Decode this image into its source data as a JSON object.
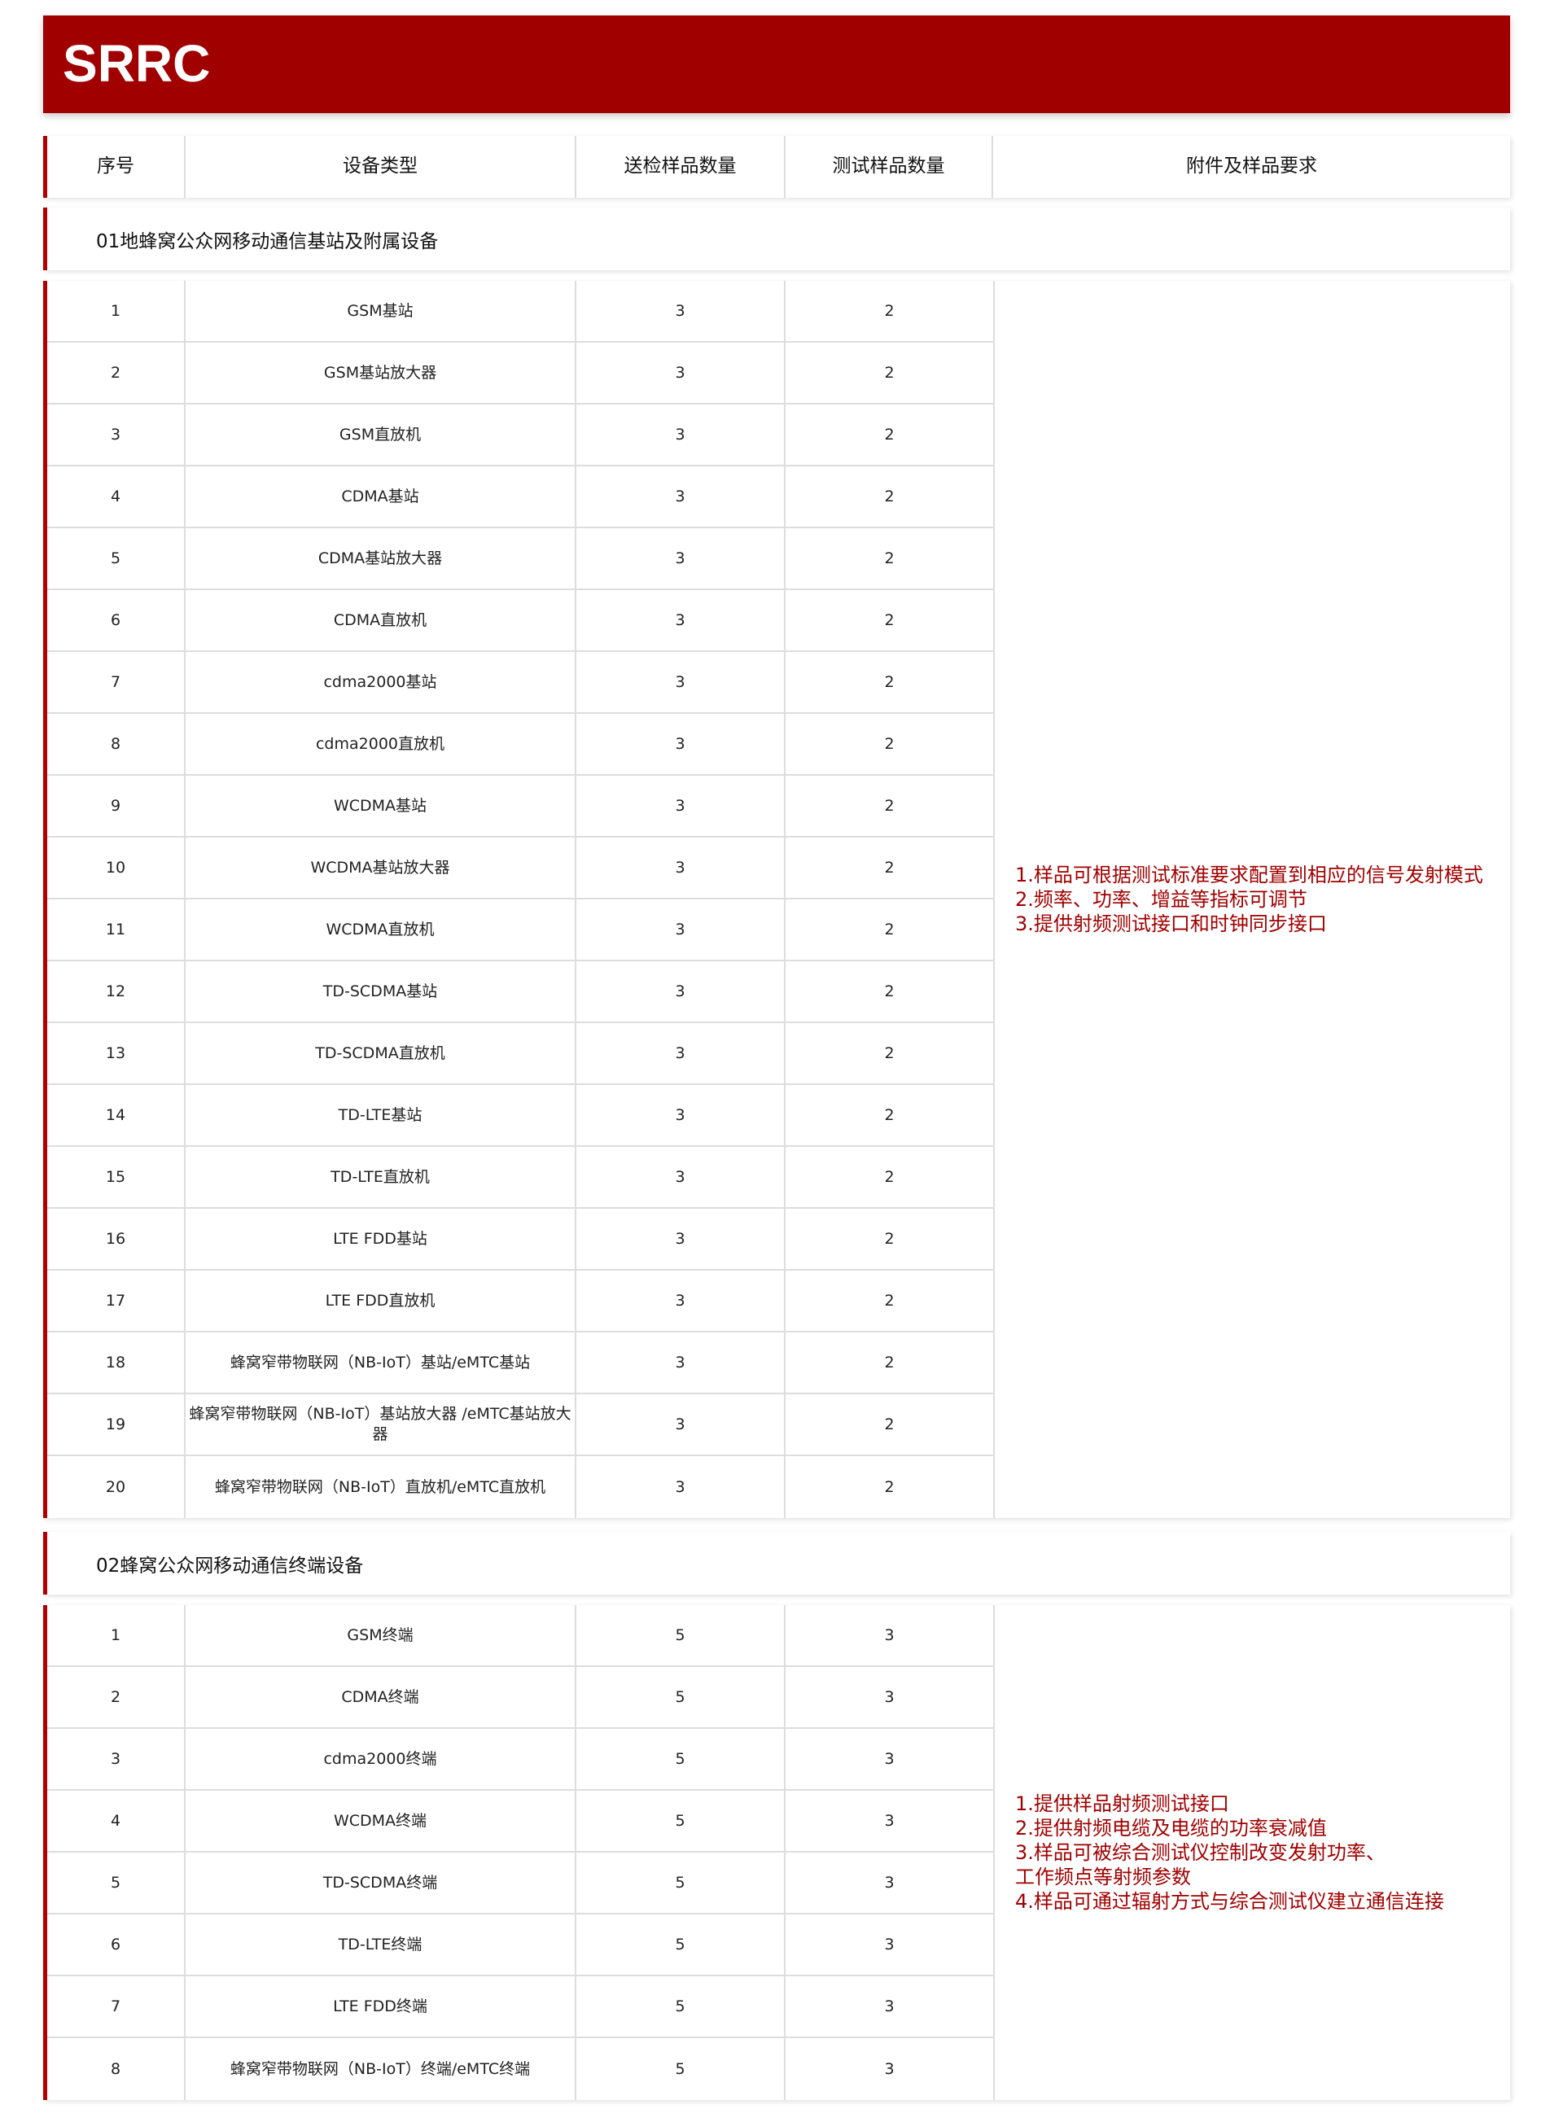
{
  "banner": {
    "title": "SRRC"
  },
  "headers": [
    "序号",
    "设备类型",
    "送检样品数量",
    "测试样品数量",
    "附件及样品要求"
  ],
  "sections": [
    {
      "title": "01地蜂窝公众网移动通信基站及附属设备",
      "requirements": [
        "1.样品可根据测试标准要求配置到相应的信号发射模式",
        "2.频率、功率、增益等指标可调节",
        "3.提供射频测试接口和时钟同步接口"
      ],
      "rows": [
        {
          "no": "1",
          "type": "GSM基站",
          "sent": "3",
          "test": "2"
        },
        {
          "no": "2",
          "type": "GSM基站放大器",
          "sent": "3",
          "test": "2"
        },
        {
          "no": "3",
          "type": "GSM直放机",
          "sent": "3",
          "test": "2"
        },
        {
          "no": "4",
          "type": "CDMA基站",
          "sent": "3",
          "test": "2"
        },
        {
          "no": "5",
          "type": "CDMA基站放大器",
          "sent": "3",
          "test": "2"
        },
        {
          "no": "6",
          "type": "CDMA直放机",
          "sent": "3",
          "test": "2"
        },
        {
          "no": "7",
          "type": "cdma2000基站",
          "sent": "3",
          "test": "2"
        },
        {
          "no": "8",
          "type": "cdma2000直放机",
          "sent": "3",
          "test": "2"
        },
        {
          "no": "9",
          "type": "WCDMA基站",
          "sent": "3",
          "test": "2"
        },
        {
          "no": "10",
          "type": "WCDMA基站放大器",
          "sent": "3",
          "test": "2"
        },
        {
          "no": "11",
          "type": "WCDMA直放机",
          "sent": "3",
          "test": "2"
        },
        {
          "no": "12",
          "type": "TD-SCDMA基站",
          "sent": "3",
          "test": "2"
        },
        {
          "no": "13",
          "type": "TD-SCDMA直放机",
          "sent": "3",
          "test": "2"
        },
        {
          "no": "14",
          "type": "TD-LTE基站",
          "sent": "3",
          "test": "2"
        },
        {
          "no": "15",
          "type": "TD-LTE直放机",
          "sent": "3",
          "test": "2"
        },
        {
          "no": "16",
          "type": "LTE FDD基站",
          "sent": "3",
          "test": "2"
        },
        {
          "no": "17",
          "type": "LTE FDD直放机",
          "sent": "3",
          "test": "2"
        },
        {
          "no": "18",
          "type": "蜂窝窄带物联网（NB-IoT）基站/eMTC基站",
          "sent": "3",
          "test": "2"
        },
        {
          "no": "19",
          "type": "蜂窝窄带物联网（NB-IoT）基站放大器 /eMTC基站放大器",
          "sent": "3",
          "test": "2"
        },
        {
          "no": "20",
          "type": "蜂窝窄带物联网（NB-IoT）直放机/eMTC直放机",
          "sent": "3",
          "test": "2"
        }
      ]
    },
    {
      "title": "02蜂窝公众网移动通信终端设备",
      "requirements": [
        "1.提供样品射频测试接口",
        "2.提供射频电缆及电缆的功率衰减值",
        "3.样品可被综合测试仪控制改变发射功率、",
        "工作频点等射频参数",
        "4.样品可通过辐射方式与综合测试仪建立通信连接"
      ],
      "rows": [
        {
          "no": "1",
          "type": "GSM终端",
          "sent": "5",
          "test": "3"
        },
        {
          "no": "2",
          "type": "CDMA终端",
          "sent": "5",
          "test": "3"
        },
        {
          "no": "3",
          "type": "cdma2000终端",
          "sent": "5",
          "test": "3"
        },
        {
          "no": "4",
          "type": "WCDMA终端",
          "sent": "5",
          "test": "3"
        },
        {
          "no": "5",
          "type": "TD-SCDMA终端",
          "sent": "5",
          "test": "3"
        },
        {
          "no": "6",
          "type": "TD-LTE终端",
          "sent": "5",
          "test": "3"
        },
        {
          "no": "7",
          "type": "LTE FDD终端",
          "sent": "5",
          "test": "3"
        },
        {
          "no": "8",
          "type": "蜂窝窄带物联网（NB-IoT）终端/eMTC终端",
          "sent": "5",
          "test": "3"
        }
      ]
    }
  ]
}
